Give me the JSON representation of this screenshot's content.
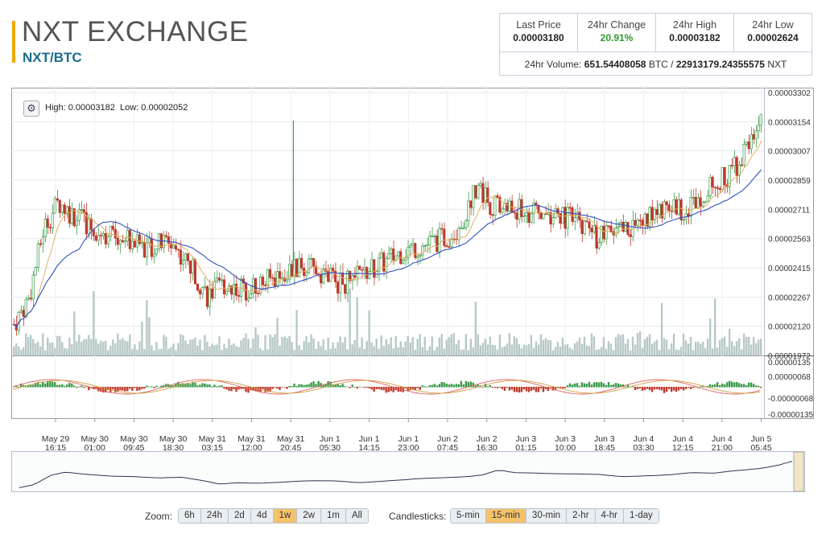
{
  "header": {
    "exchange_name": "NXT EXCHANGE",
    "pair": "NXT/BTC",
    "accent_color": "#f0a800"
  },
  "stats": {
    "last_price_label": "Last Price",
    "last_price": "0.00003180",
    "change_label": "24hr Change",
    "change": "20.91%",
    "high_label": "24hr High",
    "high": "0.00003182",
    "low_label": "24hr Low",
    "low": "0.00002624",
    "volume_label": "24hr Volume:",
    "volume_btc": "651.54408058",
    "volume_btc_unit": "BTC /",
    "volume_nxt": "22913179.24355575",
    "volume_nxt_unit": "NXT"
  },
  "chart_overlay": {
    "gear_icon": "gear-icon",
    "high_label": "High: 0.00003182",
    "low_label": "Low: 0.00002052"
  },
  "chart_data": {
    "type": "candlestick",
    "y_ticks": [
      "0.00003302",
      "0.00003154",
      "0.00003007",
      "0.00002859",
      "0.00002711",
      "0.00002563",
      "0.00002415",
      "0.00002267",
      "0.00002120",
      "0.00001972"
    ],
    "ylim": [
      1.972e-05,
      3.302e-05
    ],
    "macd_ticks": [
      "0.00000135",
      "0.00000068",
      "-0.00000068",
      "-0.00000135"
    ],
    "x_ticks": [
      [
        "May 29",
        "16:15"
      ],
      [
        "May 30",
        "01:00"
      ],
      [
        "May 30",
        "09:45"
      ],
      [
        "May 30",
        "18:30"
      ],
      [
        "May 31",
        "03:15"
      ],
      [
        "May 31",
        "12:00"
      ],
      [
        "May 31",
        "20:45"
      ],
      [
        "Jun 1",
        "05:30"
      ],
      [
        "Jun 1",
        "14:15"
      ],
      [
        "Jun 1",
        "23:00"
      ],
      [
        "Jun 2",
        "07:45"
      ],
      [
        "Jun 2",
        "16:30"
      ],
      [
        "Jun 3",
        "01:15"
      ],
      [
        "Jun 3",
        "10:00"
      ],
      [
        "Jun 3",
        "18:45"
      ],
      [
        "Jun 4",
        "03:30"
      ],
      [
        "Jun 4",
        "12:15"
      ],
      [
        "Jun 4",
        "21:00"
      ],
      [
        "Jun 5",
        "05:45"
      ]
    ],
    "price_path": [
      [
        0,
        2.13e-05
      ],
      [
        0.02,
        2.26e-05
      ],
      [
        0.04,
        2.62e-05
      ],
      [
        0.06,
        2.75e-05
      ],
      [
        0.08,
        2.68e-05
      ],
      [
        0.1,
        2.63e-05
      ],
      [
        0.12,
        2.59e-05
      ],
      [
        0.15,
        2.57e-05
      ],
      [
        0.18,
        2.52e-05
      ],
      [
        0.21,
        2.55e-05
      ],
      [
        0.24,
        2.4e-05
      ],
      [
        0.26,
        2.27e-05
      ],
      [
        0.28,
        2.33e-05
      ],
      [
        0.31,
        2.31e-05
      ],
      [
        0.34,
        2.35e-05
      ],
      [
        0.36,
        2.39e-05
      ],
      [
        0.38,
        2.41e-05
      ],
      [
        0.41,
        2.4e-05
      ],
      [
        0.44,
        2.33e-05
      ],
      [
        0.47,
        2.39e-05
      ],
      [
        0.5,
        2.45e-05
      ],
      [
        0.52,
        2.5e-05
      ],
      [
        0.55,
        2.53e-05
      ],
      [
        0.58,
        2.57e-05
      ],
      [
        0.6,
        2.64e-05
      ],
      [
        0.62,
        2.84e-05
      ],
      [
        0.64,
        2.73e-05
      ],
      [
        0.66,
        2.72e-05
      ],
      [
        0.69,
        2.69e-05
      ],
      [
        0.72,
        2.68e-05
      ],
      [
        0.75,
        2.66e-05
      ],
      [
        0.78,
        2.57e-05
      ],
      [
        0.81,
        2.6e-05
      ],
      [
        0.84,
        2.64e-05
      ],
      [
        0.87,
        2.73e-05
      ],
      [
        0.9,
        2.71e-05
      ],
      [
        0.92,
        2.79e-05
      ],
      [
        0.94,
        2.84e-05
      ],
      [
        0.96,
        2.9e-05
      ],
      [
        0.98,
        3.01e-05
      ],
      [
        1.0,
        3.18e-05
      ]
    ],
    "colors": {
      "up": "#3a9a4a",
      "down": "#c0392b",
      "ma_short": "#e0b060",
      "ma_long": "#3050c0",
      "volume": "#b8c8c8",
      "macd_line": "#e06060",
      "signal_line": "#d0a040"
    }
  },
  "toolbar": {
    "zoom_label": "Zoom:",
    "zoom_options": [
      "6h",
      "24h",
      "2d",
      "4d",
      "1w",
      "2w",
      "1m",
      "All"
    ],
    "zoom_active": "1w",
    "candle_label": "Candlesticks:",
    "candle_options": [
      "5-min",
      "15-min",
      "30-min",
      "2-hr",
      "4-hr",
      "1-day"
    ],
    "candle_active": "15-min"
  }
}
